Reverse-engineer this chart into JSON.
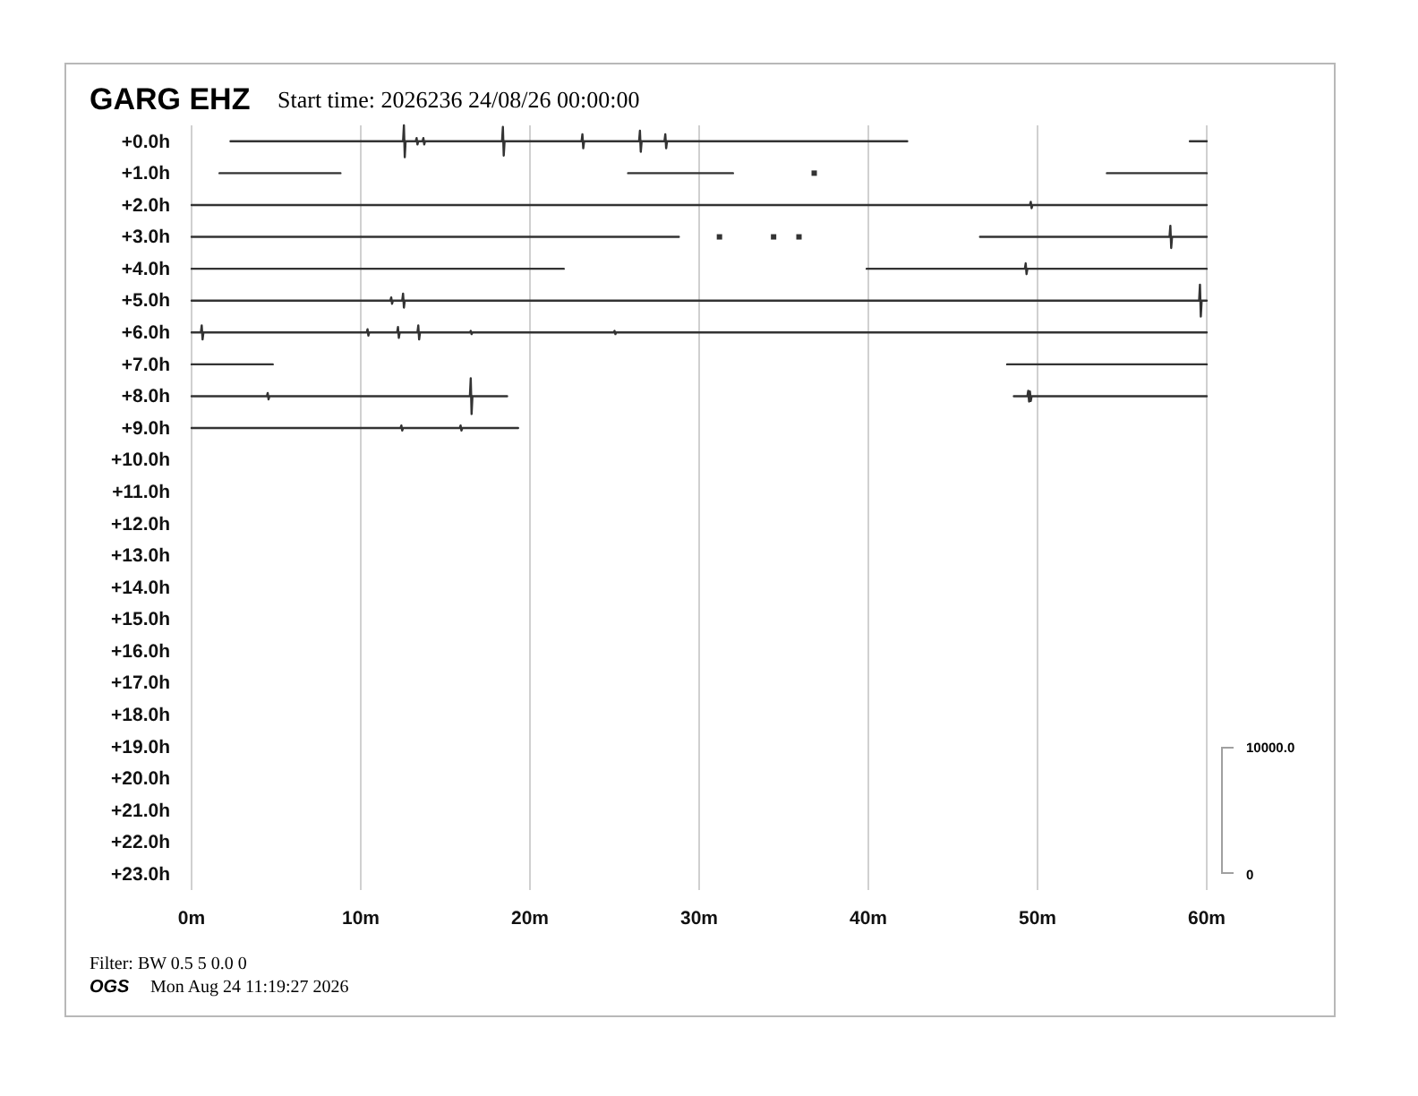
{
  "chart_data": {
    "type": "line",
    "title": "GARG EHZ",
    "subtitle": "Start time: 2026236 24/08/26 00:00:00",
    "annotations": [
      "10000.0",
      "0",
      "Filter: BW 0.5 5 0.0 0",
      "OGS",
      "Mon Aug 24 11:19:27 2026"
    ],
    "xlim": [
      0,
      60
    ],
    "xticks": [
      {
        "value": 0,
        "label": "0m"
      },
      {
        "value": 10,
        "label": "10m"
      },
      {
        "value": 20,
        "label": "20m"
      },
      {
        "value": 30,
        "label": "30m"
      },
      {
        "value": 40,
        "label": "40m"
      },
      {
        "value": 50,
        "label": "50m"
      },
      {
        "value": 60,
        "label": "60m"
      }
    ],
    "ylim": [
      23.5,
      -0.5
    ],
    "yticks": [
      {
        "value": 0,
        "label": "+0.0h"
      },
      {
        "value": 1,
        "label": "+1.0h"
      },
      {
        "value": 2,
        "label": "+2.0h"
      },
      {
        "value": 3,
        "label": "+3.0h"
      },
      {
        "value": 4,
        "label": "+4.0h"
      },
      {
        "value": 5,
        "label": "+5.0h"
      },
      {
        "value": 6,
        "label": "+6.0h"
      },
      {
        "value": 7,
        "label": "+7.0h"
      },
      {
        "value": 8,
        "label": "+8.0h"
      },
      {
        "value": 9,
        "label": "+9.0h"
      },
      {
        "value": 10,
        "label": "+10.0h"
      },
      {
        "value": 11,
        "label": "+11.0h"
      },
      {
        "value": 12,
        "label": "+12.0h"
      },
      {
        "value": 13,
        "label": "+13.0h"
      },
      {
        "value": 14,
        "label": "+14.0h"
      },
      {
        "value": 15,
        "label": "+15.0h"
      },
      {
        "value": 16,
        "label": "+16.0h"
      },
      {
        "value": 17,
        "label": "+17.0h"
      },
      {
        "value": 18,
        "label": "+18.0h"
      },
      {
        "value": 19,
        "label": "+19.0h"
      },
      {
        "value": 20,
        "label": "+20.0h"
      },
      {
        "value": 21,
        "label": "+21.0h"
      },
      {
        "value": 22,
        "label": "+22.0h"
      },
      {
        "value": 23,
        "label": "+23.0h"
      }
    ],
    "grid": "x",
    "series": [
      {
        "color": "#333333",
        "x": [
          2.3,
          12.5,
          12.55,
          12.6,
          12.65,
          13.25,
          13.3,
          13.35,
          13.4,
          13.65,
          13.7,
          13.75,
          13.8,
          18.35,
          18.4,
          18.45,
          18.5,
          23.05,
          23.1,
          23.15,
          23.2,
          26.45,
          26.5,
          26.55,
          26.6,
          27.95,
          28.0,
          28.05,
          28.1,
          42.3,
          50,
          59.0,
          60
        ],
        "values": [
          0,
          0,
          -0.5,
          0.5,
          0,
          0,
          -0.1,
          0.1,
          0,
          0,
          -0.1,
          0.1,
          0,
          0,
          -0.45,
          0.45,
          0,
          0,
          -0.22,
          0.22,
          0,
          0,
          -0.33,
          0.33,
          0,
          0,
          -0.22,
          0.22,
          0,
          0,
          null,
          0,
          0
        ]
      },
      {
        "color": "#333333",
        "x": [
          1.65,
          8.8,
          17,
          25.8,
          32.0,
          45,
          54.1,
          60
        ],
        "values": [
          1,
          1,
          null,
          1,
          1,
          null,
          1,
          1
        ]
      },
      {
        "color": "#333333",
        "x": [
          0,
          49.55,
          49.6,
          49.65,
          49.7,
          60
        ],
        "values": [
          2,
          2,
          1.9,
          2.1,
          2,
          2
        ]
      },
      {
        "color": "#333333",
        "x": [
          0,
          28.8,
          40,
          46.6,
          57.8,
          57.85,
          57.9,
          57.95,
          60
        ],
        "values": [
          3,
          3,
          null,
          3,
          3,
          2.65,
          3.35,
          3,
          3
        ]
      },
      {
        "color": "#333333",
        "x": [
          0,
          22,
          30,
          39.9,
          49.25,
          49.3,
          49.35,
          49.4,
          60
        ],
        "values": [
          4,
          4,
          null,
          4,
          4,
          3.83,
          4.17,
          4,
          4
        ]
      },
      {
        "color": "#333333",
        "x": [
          0,
          11.75,
          11.8,
          11.85,
          11.9,
          12.45,
          12.5,
          12.55,
          12.6,
          59.55,
          59.6,
          59.65,
          59.7,
          60
        ],
        "values": [
          5,
          5,
          4.9,
          5.1,
          5,
          5,
          4.78,
          5.22,
          5,
          5,
          4.5,
          5.5,
          5,
          5
        ]
      },
      {
        "color": "#333333",
        "x": [
          0,
          0.55,
          0.6,
          0.65,
          0.7,
          10.35,
          10.4,
          10.45,
          10.5,
          12.15,
          12.2,
          12.25,
          12.3,
          13.35,
          13.4,
          13.45,
          13.5,
          16.45,
          16.5,
          16.55,
          16.6,
          24.95,
          25,
          25.05,
          25.1,
          60
        ],
        "values": [
          6,
          6,
          5.78,
          6.22,
          6,
          6,
          5.9,
          6.1,
          6,
          6,
          5.83,
          6.17,
          6,
          6,
          5.78,
          6.22,
          6,
          6,
          5.95,
          6.05,
          6,
          6,
          5.95,
          6.05,
          6,
          6
        ]
      },
      {
        "color": "#333333",
        "x": [
          0,
          4.8,
          20,
          48.2,
          60
        ],
        "values": [
          7,
          7,
          null,
          7,
          7
        ]
      },
      {
        "color": "#333333",
        "x": [
          0,
          4.45,
          4.5,
          4.55,
          4.6,
          16.45,
          16.5,
          16.55,
          16.6,
          18.65,
          30,
          48.6,
          49.4,
          49.45,
          49.5,
          49.55,
          49.6,
          49.65,
          60
        ],
        "values": [
          8,
          8,
          7.9,
          8.1,
          8,
          8,
          7.44,
          8.56,
          8,
          8,
          null,
          8,
          8,
          7.83,
          8.17,
          7.85,
          8.15,
          8,
          8
        ]
      },
      {
        "color": "#333333",
        "x": [
          0,
          12.35,
          12.4,
          12.45,
          12.5,
          15.85,
          15.9,
          15.95,
          16,
          19.3
        ],
        "values": [
          9,
          9,
          8.92,
          9.08,
          9,
          9,
          8.92,
          9.08,
          9,
          9
        ]
      },
      {
        "type": "scatter",
        "marker": "square",
        "color": "#333333",
        "x": [
          36.8,
          31.2,
          34.4,
          35.9
        ],
        "values": [
          1,
          3,
          3,
          3
        ]
      }
    ]
  }
}
